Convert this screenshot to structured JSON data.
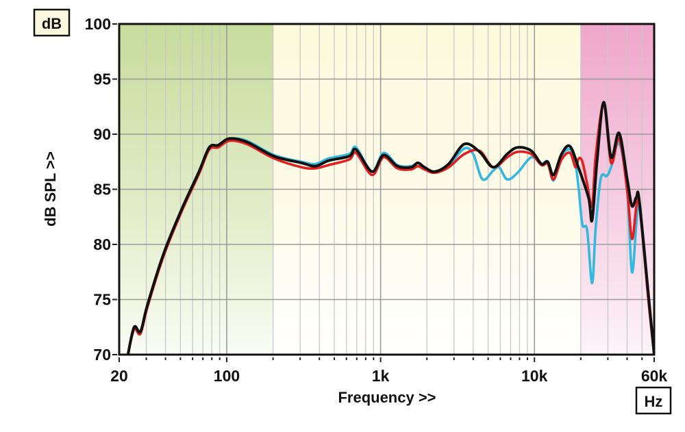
{
  "chart_data": {
    "type": "line",
    "title": "",
    "xlabel": "Frequency >>",
    "ylabel": "dB SPL >>",
    "x_unit_label": "Hz",
    "y_unit_label": "dB",
    "x_scale": "log",
    "xlim": [
      20,
      60000
    ],
    "ylim": [
      70,
      100
    ],
    "x_tick_labels": [
      {
        "value": 20,
        "label": "20"
      },
      {
        "value": 100,
        "label": "100"
      },
      {
        "value": 1000,
        "label": "1k"
      },
      {
        "value": 10000,
        "label": "10k"
      },
      {
        "value": 60000,
        "label": "60k"
      }
    ],
    "y_tick_labels": [
      {
        "value": 100,
        "label": "100"
      },
      {
        "value": 95,
        "label": "95"
      },
      {
        "value": 90,
        "label": "90"
      },
      {
        "value": 85,
        "label": "85"
      },
      {
        "value": 80,
        "label": "80"
      },
      {
        "value": 75,
        "label": "75"
      },
      {
        "value": 70,
        "label": "70"
      }
    ],
    "grid": true,
    "legend": null,
    "background_bands": [
      {
        "from": 20,
        "to": 200,
        "color": "#c8dea0",
        "fade": true
      },
      {
        "from": 200,
        "to": 20000,
        "color": "#fbf8dc",
        "fade": true
      },
      {
        "from": 20000,
        "to": 60000,
        "color": "#f0a8cc",
        "fade": true
      }
    ],
    "series": [
      {
        "name": "cyan",
        "color": "#33b8e0",
        "points": [
          [
            22.8,
            70
          ],
          [
            25,
            72.5
          ],
          [
            27.5,
            72.1
          ],
          [
            30.5,
            74.5
          ],
          [
            39,
            79.2
          ],
          [
            51,
            83.2
          ],
          [
            66,
            86.6
          ],
          [
            77,
            88.8
          ],
          [
            88,
            89.0
          ],
          [
            104,
            89.6
          ],
          [
            135,
            89.4
          ],
          [
            203,
            88.1
          ],
          [
            306,
            87.5
          ],
          [
            376,
            87.3
          ],
          [
            460,
            87.8
          ],
          [
            625,
            88.2
          ],
          [
            693,
            88.8
          ],
          [
            880,
            86.6
          ],
          [
            1045,
            88.3
          ],
          [
            1285,
            87.2
          ],
          [
            1580,
            87.1
          ],
          [
            1745,
            87.4
          ],
          [
            1930,
            87.0
          ],
          [
            2250,
            86.6
          ],
          [
            2770,
            87.2
          ],
          [
            3500,
            88.7
          ],
          [
            4000,
            88.2
          ],
          [
            4600,
            85.9
          ],
          [
            5400,
            86.7
          ],
          [
            5900,
            87.0
          ],
          [
            6650,
            85.9
          ],
          [
            7770,
            86.5
          ],
          [
            9530,
            87.9
          ],
          [
            11100,
            87.3
          ],
          [
            12200,
            87.5
          ],
          [
            13300,
            85.8
          ],
          [
            15000,
            88.0
          ],
          [
            17000,
            88.6
          ],
          [
            18500,
            87.2
          ],
          [
            19400,
            85.0
          ],
          [
            20500,
            81.8
          ],
          [
            22000,
            81.3
          ],
          [
            23700,
            76.5
          ],
          [
            25000,
            81.5
          ],
          [
            27000,
            86.0
          ],
          [
            29500,
            86.2
          ],
          [
            31500,
            87.0
          ],
          [
            35500,
            89.2
          ],
          [
            40000,
            85.0
          ],
          [
            43000,
            77.5
          ],
          [
            46000,
            82.0
          ],
          [
            48000,
            83.5
          ],
          [
            55000,
            75.0
          ],
          [
            60000,
            70
          ]
        ]
      },
      {
        "name": "red",
        "color": "#e02020",
        "points": [
          [
            22.8,
            70
          ],
          [
            25,
            72.3
          ],
          [
            27.5,
            71.9
          ],
          [
            30.5,
            74.3
          ],
          [
            39,
            79.0
          ],
          [
            51,
            83.0
          ],
          [
            66,
            86.4
          ],
          [
            77,
            88.6
          ],
          [
            88,
            88.8
          ],
          [
            104,
            89.4
          ],
          [
            135,
            89.1
          ],
          [
            203,
            87.8
          ],
          [
            306,
            87.0
          ],
          [
            376,
            86.9
          ],
          [
            460,
            87.2
          ],
          [
            625,
            87.7
          ],
          [
            693,
            88.3
          ],
          [
            880,
            86.3
          ],
          [
            1045,
            87.9
          ],
          [
            1285,
            86.9
          ],
          [
            1580,
            86.8
          ],
          [
            1745,
            87.1
          ],
          [
            1930,
            86.8
          ],
          [
            2250,
            86.5
          ],
          [
            2770,
            87.0
          ],
          [
            3500,
            88.2
          ],
          [
            4400,
            88.5
          ],
          [
            5400,
            87.0
          ],
          [
            6650,
            87.9
          ],
          [
            7770,
            88.4
          ],
          [
            9530,
            88.2
          ],
          [
            11100,
            87.2
          ],
          [
            12200,
            87.3
          ],
          [
            13300,
            85.9
          ],
          [
            15000,
            87.7
          ],
          [
            17000,
            88.3
          ],
          [
            18500,
            87.0
          ],
          [
            19400,
            87.8
          ],
          [
            20500,
            87.5
          ],
          [
            22000,
            85.5
          ],
          [
            23700,
            83.5
          ],
          [
            25000,
            88.0
          ],
          [
            28200,
            92.7
          ],
          [
            31500,
            87.4
          ],
          [
            35500,
            89.6
          ],
          [
            40000,
            85.0
          ],
          [
            43000,
            80.5
          ],
          [
            46000,
            83.5
          ],
          [
            48000,
            83.8
          ],
          [
            55000,
            75.0
          ],
          [
            60000,
            70
          ]
        ]
      },
      {
        "name": "black",
        "color": "#111111",
        "points": [
          [
            22.8,
            70
          ],
          [
            25,
            72.5
          ],
          [
            27.5,
            72.1
          ],
          [
            30.5,
            74.5
          ],
          [
            39,
            79.2
          ],
          [
            51,
            83.2
          ],
          [
            66,
            86.6
          ],
          [
            77,
            88.8
          ],
          [
            88,
            89.0
          ],
          [
            104,
            89.6
          ],
          [
            135,
            89.3
          ],
          [
            203,
            88.0
          ],
          [
            306,
            87.4
          ],
          [
            376,
            87.1
          ],
          [
            460,
            87.6
          ],
          [
            625,
            88.0
          ],
          [
            693,
            88.6
          ],
          [
            880,
            86.6
          ],
          [
            1045,
            88.1
          ],
          [
            1285,
            87.1
          ],
          [
            1580,
            87.0
          ],
          [
            1745,
            87.4
          ],
          [
            1930,
            87.0
          ],
          [
            2250,
            86.6
          ],
          [
            2770,
            87.3
          ],
          [
            3500,
            89.1
          ],
          [
            4400,
            88.4
          ],
          [
            5400,
            87.0
          ],
          [
            6650,
            88.2
          ],
          [
            7770,
            88.8
          ],
          [
            9530,
            88.5
          ],
          [
            11100,
            87.3
          ],
          [
            12200,
            87.5
          ],
          [
            13300,
            86.3
          ],
          [
            15000,
            88.2
          ],
          [
            17000,
            88.9
          ],
          [
            19400,
            86.9
          ],
          [
            22500,
            84.2
          ],
          [
            23700,
            82.2
          ],
          [
            25500,
            87.5
          ],
          [
            28200,
            92.9
          ],
          [
            31500,
            87.9
          ],
          [
            35500,
            90.1
          ],
          [
            40000,
            86.0
          ],
          [
            43000,
            83.5
          ],
          [
            46000,
            84.3
          ],
          [
            48000,
            84.0
          ],
          [
            55000,
            75.5
          ],
          [
            60000,
            70
          ]
        ]
      }
    ]
  },
  "labels": {
    "y_unit": "dB",
    "x_unit": "Hz",
    "x_title": "Frequency >>",
    "y_title": "dB SPL >>"
  }
}
